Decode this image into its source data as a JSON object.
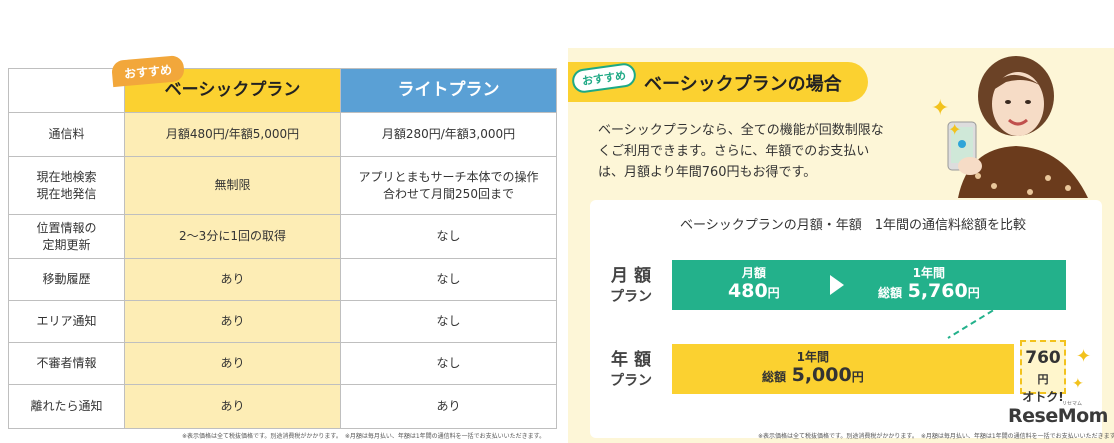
{
  "table": {
    "recommend_badge": "おすすめ",
    "headers": [
      "",
      "ベーシックプラン",
      "ライトプラン"
    ],
    "rows": [
      {
        "label": "通信料",
        "basic": "月額480円/年額5,000円",
        "light": "月額280円/年額3,000円"
      },
      {
        "label": "現在地検索\n現在地発信",
        "basic": "無制限",
        "light": "アプリとまもサーチ本体での操作\n合わせて月間250回まで"
      },
      {
        "label": "位置情報の\n定期更新",
        "basic": "2～3分に1回の取得",
        "light": "なし"
      },
      {
        "label": "移動履歴",
        "basic": "あり",
        "light": "なし"
      },
      {
        "label": "エリア通知",
        "basic": "あり",
        "light": "なし"
      },
      {
        "label": "不審者情報",
        "basic": "あり",
        "light": "なし"
      },
      {
        "label": "離れたら通知",
        "basic": "あり",
        "light": "あり"
      }
    ],
    "footnote": "※表示価格は全て税抜価格です。別途消費税がかかります。　※月額は毎月払い、年額は1年間の通信料を一括でお支払いいただきます。"
  },
  "infographic": {
    "badge": "おすすめ",
    "title": "ベーシックプランの場合",
    "intro": "ベーシックプランなら、全ての機能が回数制限なくご利用できます。さらに、年額でのお支払いは、月額より年間760円もお得です。",
    "chart_title": "ベーシックプランの月額・年額　1年間の通信料総額を比較",
    "footnote": "※表示価格は全て税抜価格です。別途消費税がかかります。　※月額は毎月払い、年額は1年間の通信料を一括でお支払いいただきます。",
    "watermark": "ReseMom",
    "watermark_sub": "リセマム"
  },
  "chart_data": {
    "type": "bar",
    "title": "ベーシックプランの月額・年額　1年間の通信料総額を比較",
    "series": [
      {
        "name": "月額プラン",
        "label_line1": "月 額",
        "label_line2": "プラン",
        "monthly_label": "月額",
        "monthly_value": "480",
        "monthly_unit": "円",
        "total_label": "1年間",
        "total_prefix": "総額",
        "total_value": "5,760",
        "total_unit": "円",
        "total": 5760
      },
      {
        "name": "年額プラン",
        "label_line1": "年 額",
        "label_line2": "プラン",
        "total_label": "1年間",
        "total_prefix": "総額",
        "total_value": "5,000",
        "total_unit": "円",
        "total": 5000
      }
    ],
    "savings": {
      "value": "760",
      "unit": "円",
      "label": "オトク!",
      "amount": 760
    },
    "colors": {
      "monthly": "#23b18b",
      "annual": "#fbd130",
      "savings_border": "#f2c21d"
    }
  }
}
